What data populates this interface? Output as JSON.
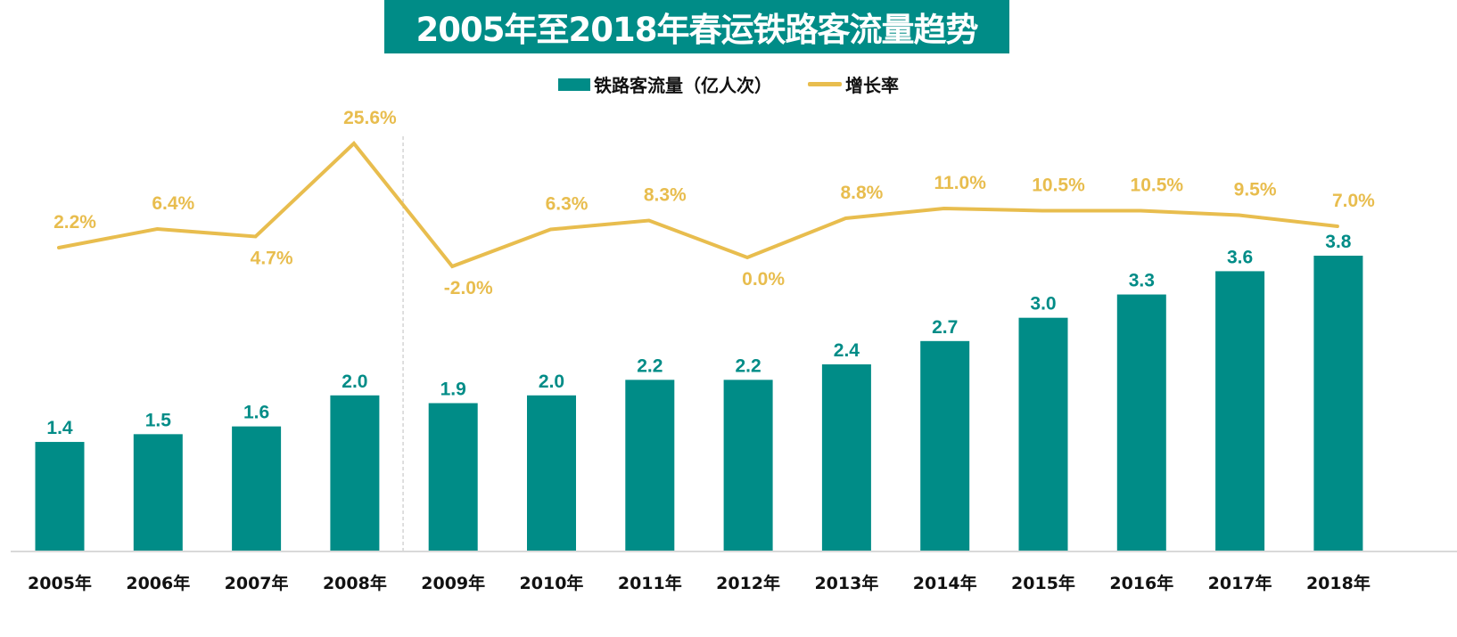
{
  "chart_data": {
    "type": "bar",
    "title": "2005年至2018年春运铁路客流量趋势",
    "categories": [
      "2005年",
      "2006年",
      "2007年",
      "2008年",
      "2009年",
      "2010年",
      "2011年",
      "2012年",
      "2013年",
      "2014年",
      "2015年",
      "2016年",
      "2017年",
      "2018年"
    ],
    "series": [
      {
        "name": "铁路客流量（亿人次）",
        "type": "bar",
        "color": "#008C87",
        "values": [
          1.4,
          1.5,
          1.6,
          2.0,
          1.9,
          2.0,
          2.2,
          2.2,
          2.4,
          2.7,
          3.0,
          3.3,
          3.6,
          3.8
        ],
        "labels": [
          "1.4",
          "1.5",
          "1.6",
          "2.0",
          "1.9",
          "2.0",
          "2.2",
          "2.2",
          "2.4",
          "2.7",
          "3.0",
          "3.3",
          "3.6",
          "3.8"
        ]
      },
      {
        "name": "增长率",
        "type": "line",
        "color": "#E8BD4E",
        "values": [
          2.2,
          6.4,
          4.7,
          25.6,
          -2.0,
          6.3,
          8.3,
          0.0,
          8.8,
          11.0,
          10.5,
          10.5,
          9.5,
          7.0
        ],
        "labels": [
          "2.2%",
          "6.4%",
          "4.7%",
          "25.6%",
          "-2.0%",
          "6.3%",
          "8.3%",
          "0.0%",
          "8.8%",
          "11.0%",
          "10.5%",
          "10.5%",
          "9.5%",
          "7.0%"
        ],
        "label_position": [
          "above",
          "above",
          "below",
          "above",
          "below",
          "above",
          "above",
          "below",
          "above",
          "above",
          "above",
          "above",
          "above",
          "above"
        ]
      }
    ],
    "legend": {
      "placement": "top-center",
      "entries": [
        "铁路客流量（亿人次）",
        "增长率"
      ]
    },
    "divider_after_category": "2008年",
    "grid": false,
    "ylim_bar": [
      0,
      3.8
    ],
    "ylim_line": [
      -2.0,
      25.6
    ]
  }
}
